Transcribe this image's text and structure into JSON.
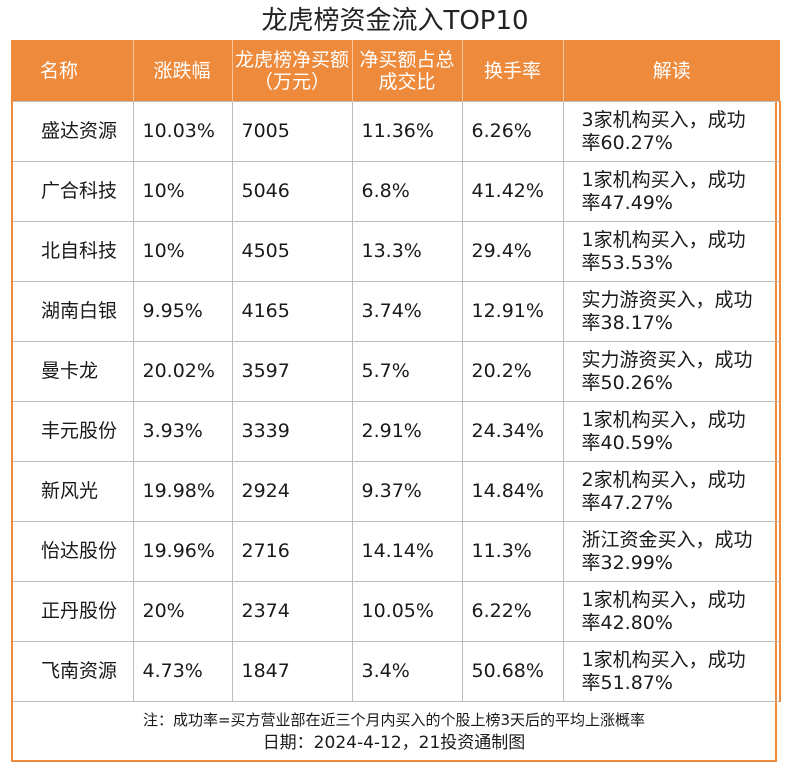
{
  "title": "龙虎榜资金流入TOP10",
  "headers": [
    "名称",
    "涨跌幅",
    "龙虎榜净买额（万元）",
    "净买额占总成交比",
    "换手率",
    "解读"
  ],
  "rows": [
    {
      "name": "盛达资源",
      "change": "10.03%",
      "net_buy": "7005",
      "ratio": "11.36%",
      "turnover": "6.26%",
      "note": "3家机构买入，成功率60.27%"
    },
    {
      "name": "广合科技",
      "change": "10%",
      "net_buy": "5046",
      "ratio": "6.8%",
      "turnover": "41.42%",
      "note": "1家机构买入，成功率47.49%"
    },
    {
      "name": "北自科技",
      "change": "10%",
      "net_buy": "4505",
      "ratio": "13.3%",
      "turnover": "29.4%",
      "note": "1家机构买入，成功率53.53%"
    },
    {
      "name": "湖南白银",
      "change": "9.95%",
      "net_buy": "4165",
      "ratio": "3.74%",
      "turnover": "12.91%",
      "note": "实力游资买入，成功率38.17%"
    },
    {
      "name": "曼卡龙",
      "change": "20.02%",
      "net_buy": "3597",
      "ratio": "5.7%",
      "turnover": "20.2%",
      "note": "实力游资买入，成功率50.26%"
    },
    {
      "name": "丰元股份",
      "change": "3.93%",
      "net_buy": "3339",
      "ratio": "2.91%",
      "turnover": "24.34%",
      "note": "1家机构买入，成功率40.59%"
    },
    {
      "name": "新风光",
      "change": "19.98%",
      "net_buy": "2924",
      "ratio": "9.37%",
      "turnover": "14.84%",
      "note": "2家机构买入，成功率47.27%"
    },
    {
      "name": "怡达股份",
      "change": "19.96%",
      "net_buy": "2716",
      "ratio": "14.14%",
      "turnover": "11.3%",
      "note": "浙江资金买入，成功率32.99%"
    },
    {
      "name": "正丹股份",
      "change": "20%",
      "net_buy": "2374",
      "ratio": "10.05%",
      "turnover": "6.22%",
      "note": "1家机构买入，成功率42.80%"
    },
    {
      "name": "飞南资源",
      "change": "4.73%",
      "net_buy": "1847",
      "ratio": "3.4%",
      "turnover": "50.68%",
      "note": "1家机构买入，成功率51.87%"
    }
  ],
  "footnote": "注：成功率=买方营业部在近三个月内买入的个股上榜3天后的平均上涨概率",
  "source": "日期：2024-4-12，21投资通制图",
  "colors": {
    "header_bg": "#ee8a3c",
    "header_text": "#ffffff",
    "border": "#bdbdbd"
  }
}
